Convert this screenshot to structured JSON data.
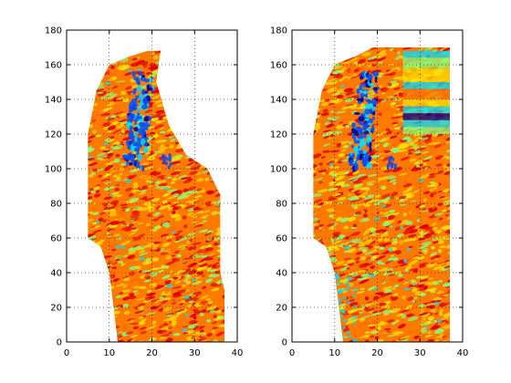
{
  "chart_data": [
    {
      "type": "heatmap",
      "panel": "left",
      "title": "",
      "xlabel": "",
      "ylabel": "",
      "xlim": [
        0,
        40
      ],
      "ylim": [
        0,
        180
      ],
      "xticks": [
        0,
        10,
        20,
        30,
        40
      ],
      "yticks": [
        0,
        20,
        40,
        60,
        80,
        100,
        120,
        140,
        160,
        180
      ],
      "grid": true,
      "colormap": "jet",
      "colors": [
        "#00008f",
        "#0050ff",
        "#00dfff",
        "#7fff80",
        "#ffe000",
        "#ff7000",
        "#e00000"
      ],
      "region_outline": [
        [
          5,
          60
        ],
        [
          5,
          120
        ],
        [
          7,
          145
        ],
        [
          10,
          160
        ],
        [
          15,
          165
        ],
        [
          19,
          168
        ],
        [
          22,
          168
        ],
        [
          21,
          150
        ],
        [
          24,
          125
        ],
        [
          28,
          108
        ],
        [
          33,
          100
        ],
        [
          36,
          85
        ],
        [
          36,
          40
        ],
        [
          37,
          30
        ],
        [
          37,
          0
        ],
        [
          12,
          0
        ],
        [
          10,
          40
        ],
        [
          8,
          55
        ]
      ],
      "dominant_color": "#ff7a00",
      "blue_streak": {
        "x_range": [
          14,
          20
        ],
        "y_range": [
          100,
          155
        ]
      }
    },
    {
      "type": "heatmap",
      "panel": "right",
      "title": "",
      "xlabel": "",
      "ylabel": "",
      "xlim": [
        0,
        40
      ],
      "ylim": [
        0,
        180
      ],
      "xticks": [
        0,
        10,
        20,
        30,
        40
      ],
      "yticks": [
        0,
        20,
        40,
        60,
        80,
        100,
        120,
        140,
        160,
        180
      ],
      "grid": true,
      "colormap": "jet",
      "colors": [
        "#00008f",
        "#0050ff",
        "#00dfff",
        "#7fff80",
        "#ffe000",
        "#ff7000",
        "#e00000"
      ],
      "region_outline": [
        [
          5,
          60
        ],
        [
          5,
          120
        ],
        [
          7,
          145
        ],
        [
          10,
          160
        ],
        [
          15,
          165
        ],
        [
          19,
          170
        ],
        [
          37,
          170
        ],
        [
          37,
          0
        ],
        [
          12,
          0
        ],
        [
          10,
          40
        ],
        [
          8,
          55
        ]
      ],
      "dominant_color": "#ff7a00",
      "blue_streak": {
        "x_range": [
          14,
          20
        ],
        "y_range": [
          100,
          155
        ]
      },
      "extrapolated_patch": {
        "x_range": [
          26,
          37
        ],
        "y_range": [
          120,
          168
        ]
      }
    }
  ]
}
